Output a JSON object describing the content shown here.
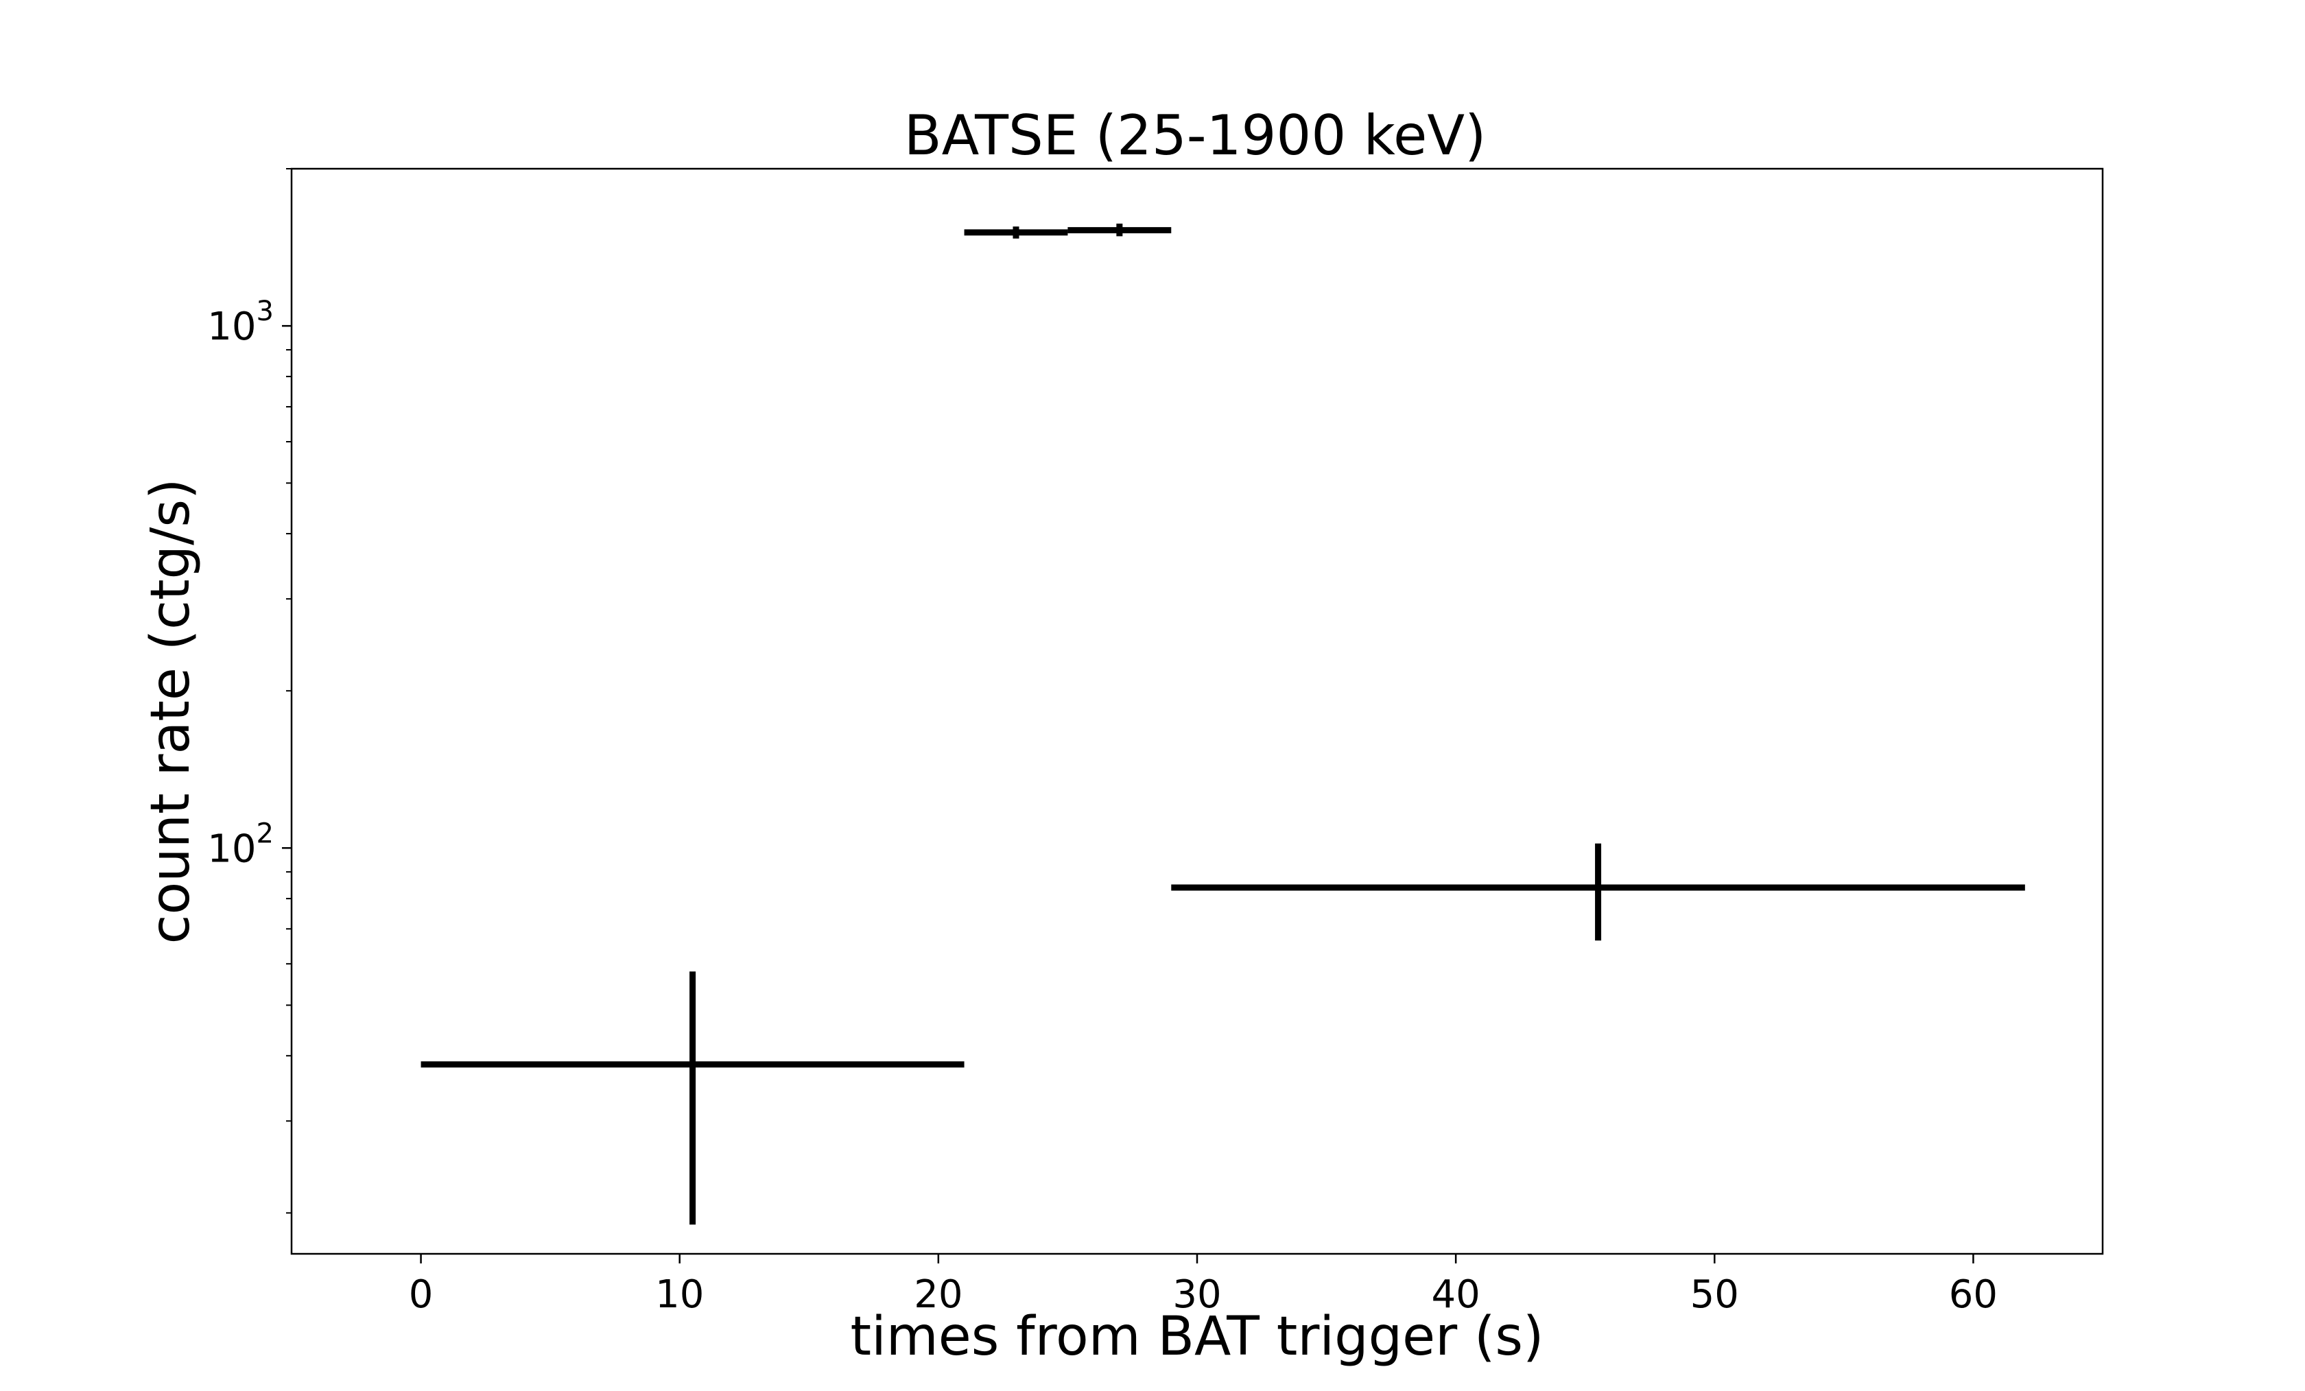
{
  "chart_data": {
    "type": "scatter",
    "title": "BATSE (25-1900 keV)",
    "xlabel": "times from BAT trigger (s)",
    "ylabel": "count rate (ctg/s)",
    "xlim": [
      -5,
      65
    ],
    "ylim": [
      16.7,
      2000
    ],
    "yscale": "log",
    "grid": false,
    "x_ticks": [
      0,
      10,
      20,
      30,
      40,
      50,
      60
    ],
    "x_tick_labels": [
      "0",
      "10",
      "20",
      "30",
      "40",
      "50",
      "60"
    ],
    "y_ticks": [
      100,
      1000
    ],
    "y_tick_labels": [
      {
        "base": "10",
        "exp": "2"
      },
      {
        "base": "10",
        "exp": "3"
      }
    ],
    "series": [
      {
        "color": "#000000",
        "points": [
          {
            "x": 10.5,
            "xerr": 10.5,
            "y": 38.5,
            "yerr_low": 19.0,
            "yerr_high": 58.0
          },
          {
            "x": 23.0,
            "xerr": 2.0,
            "y": 1510,
            "yerr_low": 1470,
            "yerr_high": 1550
          },
          {
            "x": 27.0,
            "xerr": 2.0,
            "y": 1525,
            "yerr_low": 1485,
            "yerr_high": 1570
          },
          {
            "x": 45.5,
            "xerr": 16.5,
            "y": 84.0,
            "yerr_low": 66.5,
            "yerr_high": 102.0
          }
        ]
      }
    ]
  }
}
